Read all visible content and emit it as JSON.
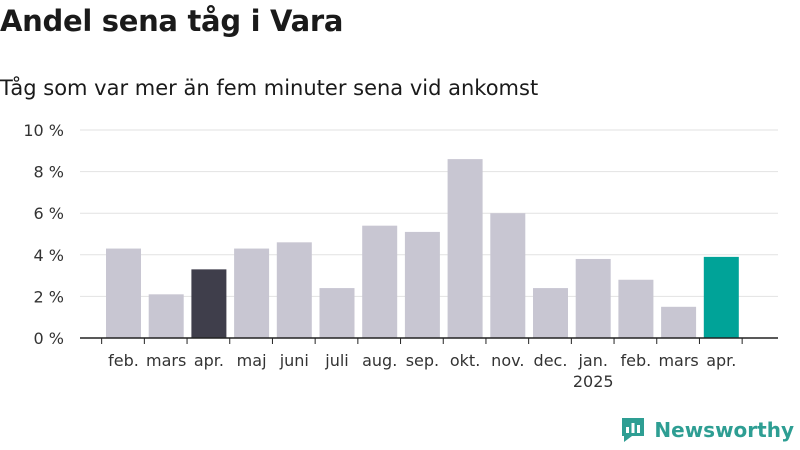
{
  "chart_data": {
    "type": "bar",
    "title": "Andel sena tåg i Vara",
    "subtitle": "Tåg som var mer än fem minuter sena vid ankomst",
    "categories": [
      "feb.",
      "mars",
      "apr.",
      "maj",
      "juni",
      "juli",
      "aug.",
      "sep.",
      "okt.",
      "nov.",
      "dec.",
      "jan.",
      "feb.",
      "mars",
      "apr."
    ],
    "year_labels": [
      "",
      "",
      "",
      "",
      "",
      "",
      "",
      "",
      "",
      "",
      "",
      "2025",
      "",
      "",
      ""
    ],
    "values": [
      4.3,
      2.1,
      3.3,
      4.3,
      4.6,
      2.4,
      5.4,
      5.1,
      8.6,
      6.0,
      2.4,
      3.8,
      2.8,
      1.5,
      3.9
    ],
    "bar_colors": [
      "#c8c6d2",
      "#c8c6d2",
      "#3f3e4b",
      "#c8c6d2",
      "#c8c6d2",
      "#c8c6d2",
      "#c8c6d2",
      "#c8c6d2",
      "#c8c6d2",
      "#c8c6d2",
      "#c8c6d2",
      "#c8c6d2",
      "#c8c6d2",
      "#c8c6d2",
      "#00a398"
    ],
    "yticks": [
      "0 %",
      "2 %",
      "4 %",
      "6 %",
      "8 %",
      "10 %"
    ],
    "ylim": [
      0,
      10
    ],
    "xlabel": "",
    "ylabel": "",
    "grid": true
  },
  "brand": {
    "name": "Newsworthy",
    "color": "#2e9e93",
    "icon": "newsworthy-logo-icon"
  }
}
